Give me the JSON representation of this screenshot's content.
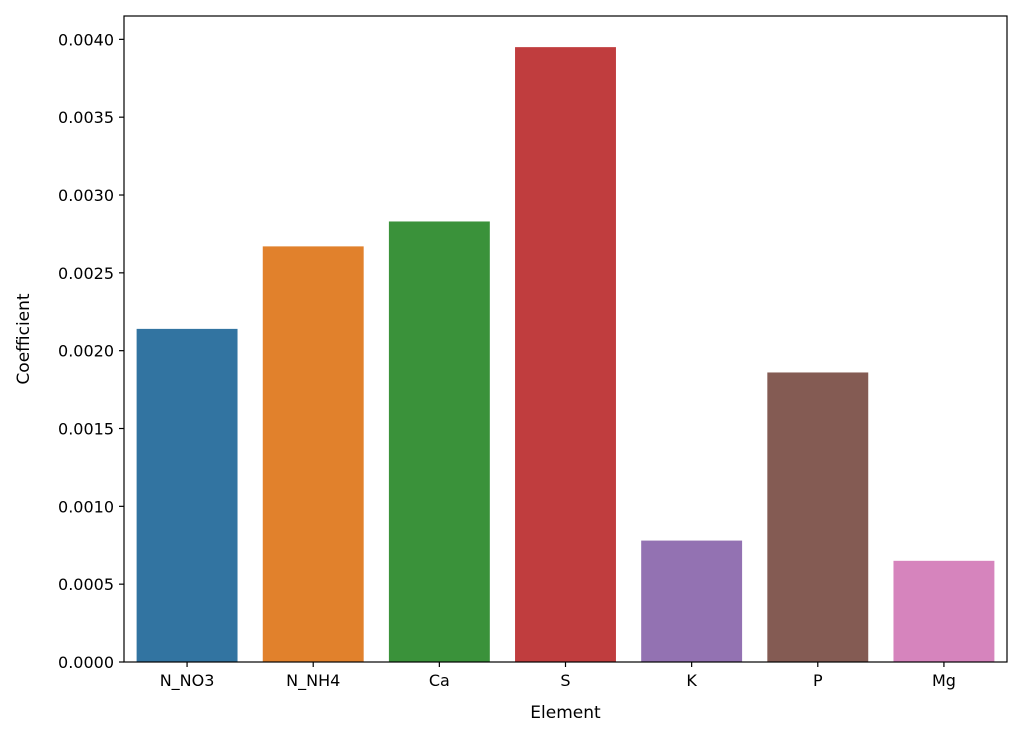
{
  "chart_data": {
    "type": "bar",
    "title": "",
    "xlabel": "Element",
    "ylabel": "Coefficient",
    "categories": [
      "N_NO3",
      "N_NH4",
      "Ca",
      "S",
      "K",
      "P",
      "Mg"
    ],
    "values": [
      0.00214,
      0.00267,
      0.00283,
      0.00395,
      0.00078,
      0.00186,
      0.00065
    ],
    "colors": [
      "#3274a1",
      "#e1812c",
      "#3a923a",
      "#c03d3e",
      "#9372b2",
      "#845b53",
      "#d684bd"
    ],
    "ylim": [
      0,
      0.00415
    ],
    "yticks": [
      "0.0000",
      "0.0005",
      "0.0010",
      "0.0015",
      "0.0020",
      "0.0025",
      "0.0030",
      "0.0035",
      "0.0040"
    ],
    "grid": false,
    "legend": "none"
  }
}
